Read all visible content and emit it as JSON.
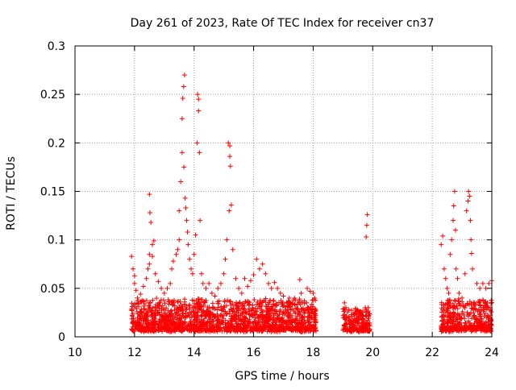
{
  "chart_data": {
    "type": "scatter",
    "title": "Day 261 of 2023, Rate Of TEC Index for receiver cn37",
    "xlabel": "GPS time / hours",
    "ylabel": "ROTI / TECUs",
    "xlim": [
      10,
      24
    ],
    "ylim": [
      0,
      0.3
    ],
    "x_ticks": [
      10,
      12,
      14,
      16,
      18,
      20,
      22,
      24
    ],
    "x_tick_labels": [
      "10",
      "12",
      "14",
      "16",
      "18",
      "20",
      "22",
      "24"
    ],
    "y_ticks": [
      0,
      0.05,
      0.1,
      0.15,
      0.2,
      0.25,
      0.3
    ],
    "y_tick_labels": [
      "0",
      "0.05",
      "0.1",
      "0.15",
      "0.2",
      "0.25",
      "0.3"
    ],
    "grid": true,
    "legend": false,
    "marker": "+",
    "marker_color": "#ff0000",
    "series": [
      {
        "points": [
          [
            11.9,
            0.083
          ],
          [
            11.95,
            0.07
          ],
          [
            12.0,
            0.063
          ],
          [
            12.0,
            0.055
          ],
          [
            12.05,
            0.048
          ],
          [
            12.1,
            0.04
          ],
          [
            12.2,
            0.044
          ],
          [
            12.3,
            0.052
          ],
          [
            12.4,
            0.06
          ],
          [
            12.45,
            0.07
          ],
          [
            12.5,
            0.075
          ],
          [
            12.5,
            0.085
          ],
          [
            12.52,
            0.128
          ],
          [
            12.5,
            0.147
          ],
          [
            12.55,
            0.118
          ],
          [
            12.6,
            0.095
          ],
          [
            12.6,
            0.083
          ],
          [
            12.65,
            0.099
          ],
          [
            12.7,
            0.065
          ],
          [
            12.8,
            0.057
          ],
          [
            12.9,
            0.05
          ],
          [
            13.0,
            0.045
          ],
          [
            13.1,
            0.05
          ],
          [
            13.2,
            0.055
          ],
          [
            13.25,
            0.07
          ],
          [
            13.3,
            0.078
          ],
          [
            13.4,
            0.085
          ],
          [
            13.45,
            0.09
          ],
          [
            13.5,
            0.1
          ],
          [
            13.5,
            0.13
          ],
          [
            13.55,
            0.16
          ],
          [
            13.6,
            0.19
          ],
          [
            13.6,
            0.225
          ],
          [
            13.62,
            0.246
          ],
          [
            13.65,
            0.258
          ],
          [
            13.68,
            0.27
          ],
          [
            13.66,
            0.175
          ],
          [
            13.7,
            0.143
          ],
          [
            13.72,
            0.133
          ],
          [
            13.75,
            0.12
          ],
          [
            13.78,
            0.108
          ],
          [
            13.8,
            0.095
          ],
          [
            13.85,
            0.08
          ],
          [
            13.9,
            0.07
          ],
          [
            13.95,
            0.065
          ],
          [
            14.0,
            0.085
          ],
          [
            14.05,
            0.105
          ],
          [
            14.1,
            0.2
          ],
          [
            14.12,
            0.25
          ],
          [
            14.15,
            0.245
          ],
          [
            14.15,
            0.233
          ],
          [
            14.18,
            0.19
          ],
          [
            14.2,
            0.12
          ],
          [
            14.25,
            0.065
          ],
          [
            14.3,
            0.055
          ],
          [
            14.4,
            0.05
          ],
          [
            14.5,
            0.055
          ],
          [
            14.6,
            0.045
          ],
          [
            14.7,
            0.042
          ],
          [
            14.8,
            0.05
          ],
          [
            14.9,
            0.055
          ],
          [
            15.0,
            0.065
          ],
          [
            15.05,
            0.08
          ],
          [
            15.1,
            0.1
          ],
          [
            15.15,
            0.2
          ],
          [
            15.2,
            0.197
          ],
          [
            15.2,
            0.186
          ],
          [
            15.22,
            0.176
          ],
          [
            15.18,
            0.13
          ],
          [
            15.25,
            0.136
          ],
          [
            15.3,
            0.09
          ],
          [
            15.4,
            0.06
          ],
          [
            15.5,
            0.05
          ],
          [
            15.6,
            0.045
          ],
          [
            15.7,
            0.06
          ],
          [
            15.8,
            0.052
          ],
          [
            15.9,
            0.058
          ],
          [
            16.0,
            0.064
          ],
          [
            16.1,
            0.08
          ],
          [
            16.2,
            0.07
          ],
          [
            16.3,
            0.075
          ],
          [
            16.4,
            0.065
          ],
          [
            16.5,
            0.055
          ],
          [
            16.6,
            0.05
          ],
          [
            16.7,
            0.056
          ],
          [
            16.8,
            0.05
          ],
          [
            16.9,
            0.045
          ],
          [
            17.0,
            0.042
          ],
          [
            17.2,
            0.04
          ],
          [
            17.4,
            0.038
          ],
          [
            17.55,
            0.059
          ],
          [
            17.6,
            0.045
          ],
          [
            17.8,
            0.05
          ],
          [
            17.9,
            0.047
          ],
          [
            18.0,
            0.045
          ],
          [
            18.05,
            0.04
          ],
          [
            19.05,
            0.035
          ],
          [
            19.1,
            0.03
          ],
          [
            19.2,
            0.028
          ],
          [
            19.4,
            0.025
          ],
          [
            19.5,
            0.027
          ],
          [
            19.6,
            0.026
          ],
          [
            19.75,
            0.03
          ],
          [
            19.78,
            0.103
          ],
          [
            19.8,
            0.115
          ],
          [
            19.82,
            0.126
          ],
          [
            19.85,
            0.03
          ],
          [
            22.3,
            0.095
          ],
          [
            22.35,
            0.104
          ],
          [
            22.4,
            0.07
          ],
          [
            22.45,
            0.06
          ],
          [
            22.5,
            0.05
          ],
          [
            22.55,
            0.045
          ],
          [
            22.6,
            0.085
          ],
          [
            22.65,
            0.1
          ],
          [
            22.7,
            0.12
          ],
          [
            22.72,
            0.135
          ],
          [
            22.75,
            0.15
          ],
          [
            22.78,
            0.11
          ],
          [
            22.8,
            0.07
          ],
          [
            22.85,
            0.06
          ],
          [
            22.9,
            0.045
          ],
          [
            23.0,
            0.04
          ],
          [
            23.1,
            0.065
          ],
          [
            23.15,
            0.13
          ],
          [
            23.2,
            0.14
          ],
          [
            23.22,
            0.15
          ],
          [
            23.25,
            0.145
          ],
          [
            23.28,
            0.12
          ],
          [
            23.3,
            0.1
          ],
          [
            23.32,
            0.086
          ],
          [
            23.35,
            0.07
          ],
          [
            23.5,
            0.055
          ],
          [
            23.6,
            0.05
          ],
          [
            23.7,
            0.055
          ],
          [
            23.8,
            0.05
          ],
          [
            23.9,
            0.055
          ],
          [
            24.0,
            0.058
          ]
        ],
        "dense_clusters": [
          {
            "x": [
              11.9,
              18.1
            ],
            "y": [
              0.005,
              0.04
            ]
          },
          {
            "x": [
              19.0,
              19.9
            ],
            "y": [
              0.005,
              0.03
            ]
          },
          {
            "x": [
              22.3,
              24.0
            ],
            "y": [
              0.005,
              0.04
            ]
          }
        ]
      }
    ]
  }
}
